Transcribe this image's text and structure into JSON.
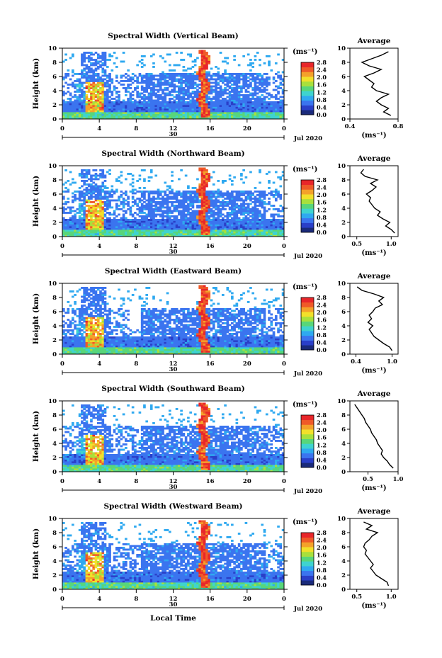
{
  "colorbar": {
    "unit": "(ms⁻¹)",
    "ticks": [
      "2.8",
      "2.4",
      "2.0",
      "1.6",
      "1.2",
      "0.8",
      "0.4",
      "0.0"
    ],
    "range": [
      0.0,
      2.8
    ],
    "colors": [
      "#1a2a7a",
      "#2a3fc8",
      "#3b74ef",
      "#2fa9f0",
      "#3fd3cf",
      "#58d67a",
      "#a8e03c",
      "#f2e02a",
      "#f4a12a",
      "#ef5a28",
      "#e8262a"
    ]
  },
  "x_axis": {
    "label": "Local Time",
    "ticks": [
      "0",
      "4",
      "8",
      "12",
      "16",
      "20",
      "0"
    ],
    "day_label": "30",
    "month_label": "Jul 2020"
  },
  "chart_data": [
    {
      "type": "heatmap",
      "title": "Spectral Width (Vertical Beam)",
      "ylabel": "Height (km)",
      "xlabel": "",
      "xlim": [
        0,
        24
      ],
      "ylim": [
        0,
        10
      ],
      "y_ticks": [
        "0",
        "2",
        "4",
        "6",
        "8",
        "10"
      ],
      "grid": false,
      "average": {
        "title": "Average",
        "xlabel": "(ms⁻¹)",
        "x_ticks": [
          "0.4",
          "0.8"
        ],
        "xlim": [
          0.4,
          0.8
        ],
        "ylim": [
          0,
          10
        ],
        "heights": [
          0.5,
          1,
          1.5,
          2,
          2.5,
          3,
          3.5,
          4,
          4.5,
          5,
          5.5,
          6,
          6.5,
          7,
          7.5,
          8,
          8.5,
          9,
          9.5
        ],
        "values": [
          0.74,
          0.68,
          0.72,
          0.66,
          0.62,
          0.66,
          0.72,
          0.62,
          0.58,
          0.6,
          0.56,
          0.52,
          0.6,
          0.66,
          0.56,
          0.5,
          0.58,
          0.66,
          0.72
        ]
      }
    },
    {
      "type": "heatmap",
      "title": "Spectral Width (Northward Beam)",
      "ylabel": "Height (km)",
      "xlabel": "",
      "xlim": [
        0,
        24
      ],
      "ylim": [
        0,
        10
      ],
      "y_ticks": [
        "0",
        "2",
        "4",
        "6",
        "8",
        "10"
      ],
      "grid": false,
      "average": {
        "title": "Average",
        "xlabel": "(ms⁻¹)",
        "x_ticks": [
          "0.5",
          "1.0"
        ],
        "xlim": [
          0.4,
          1.1
        ],
        "ylim": [
          0,
          10
        ],
        "heights": [
          0.5,
          1,
          1.5,
          2,
          2.5,
          3,
          3.5,
          4,
          4.5,
          5,
          5.5,
          6,
          6.5,
          7,
          7.5,
          8,
          8.5,
          9,
          9.5
        ],
        "values": [
          1.05,
          1.0,
          0.92,
          0.98,
          0.88,
          0.8,
          0.84,
          0.76,
          0.72,
          0.68,
          0.7,
          0.64,
          0.72,
          0.78,
          0.7,
          0.8,
          0.62,
          0.56,
          0.6
        ]
      }
    },
    {
      "type": "heatmap",
      "title": "Spectral Width (Eastward Beam)",
      "ylabel": "Height (km)",
      "xlabel": "",
      "xlim": [
        0,
        24
      ],
      "ylim": [
        0,
        10
      ],
      "y_ticks": [
        "0",
        "2",
        "4",
        "6",
        "8",
        "10"
      ],
      "grid": false,
      "average": {
        "title": "Average",
        "xlabel": "(ms⁻¹)",
        "x_ticks": [
          "0.4",
          "1.0"
        ],
        "xlim": [
          0.3,
          1.1
        ],
        "ylim": [
          0,
          10
        ],
        "heights": [
          0.5,
          1,
          1.5,
          2,
          2.5,
          3,
          3.5,
          4,
          4.5,
          5,
          5.5,
          6,
          6.5,
          7,
          7.5,
          8,
          8.5,
          9,
          9.5
        ],
        "values": [
          1.0,
          0.96,
          0.86,
          0.78,
          0.7,
          0.66,
          0.62,
          0.68,
          0.6,
          0.66,
          0.62,
          0.68,
          0.72,
          0.84,
          0.78,
          0.86,
          0.7,
          0.5,
          0.42
        ]
      }
    },
    {
      "type": "heatmap",
      "title": "Spectral Width (Southward Beam)",
      "ylabel": "Height (km)",
      "xlabel": "",
      "xlim": [
        0,
        24
      ],
      "ylim": [
        0,
        10
      ],
      "y_ticks": [
        "0",
        "2",
        "4",
        "6",
        "8",
        "10"
      ],
      "grid": false,
      "average": {
        "title": "Average",
        "xlabel": "(ms⁻¹)",
        "x_ticks": [
          "0.5",
          "1.0"
        ],
        "xlim": [
          0.2,
          1.0
        ],
        "ylim": [
          0,
          10
        ],
        "heights": [
          0.5,
          1,
          1.5,
          2,
          2.5,
          3,
          3.5,
          4,
          4.5,
          5,
          5.5,
          6,
          6.5,
          7,
          7.5,
          8,
          8.5,
          9,
          9.5
        ],
        "values": [
          0.92,
          0.86,
          0.82,
          0.76,
          0.72,
          0.74,
          0.7,
          0.66,
          0.64,
          0.6,
          0.56,
          0.54,
          0.5,
          0.46,
          0.44,
          0.4,
          0.36,
          0.32,
          0.28
        ]
      }
    },
    {
      "type": "heatmap",
      "title": "Spectral Width (Westward Beam)",
      "ylabel": "Height (km)",
      "xlabel": "Local Time",
      "xlim": [
        0,
        24
      ],
      "ylim": [
        0,
        10
      ],
      "y_ticks": [
        "0",
        "2",
        "4",
        "6",
        "8",
        "10"
      ],
      "grid": false,
      "average": {
        "title": "Average",
        "xlabel": "(ms⁻¹)",
        "x_ticks": [
          "0.5",
          "1.0"
        ],
        "xlim": [
          0.4,
          1.1
        ],
        "ylim": [
          0,
          10
        ],
        "heights": [
          0.5,
          1,
          1.5,
          2,
          2.5,
          3,
          3.5,
          4,
          4.5,
          5,
          5.5,
          6,
          6.5,
          7,
          7.5,
          8,
          8.5,
          9,
          9.5
        ],
        "values": [
          0.96,
          0.94,
          0.86,
          0.78,
          0.74,
          0.7,
          0.74,
          0.7,
          0.66,
          0.62,
          0.64,
          0.6,
          0.62,
          0.68,
          0.72,
          0.8,
          0.64,
          0.72,
          0.6
        ]
      }
    }
  ]
}
